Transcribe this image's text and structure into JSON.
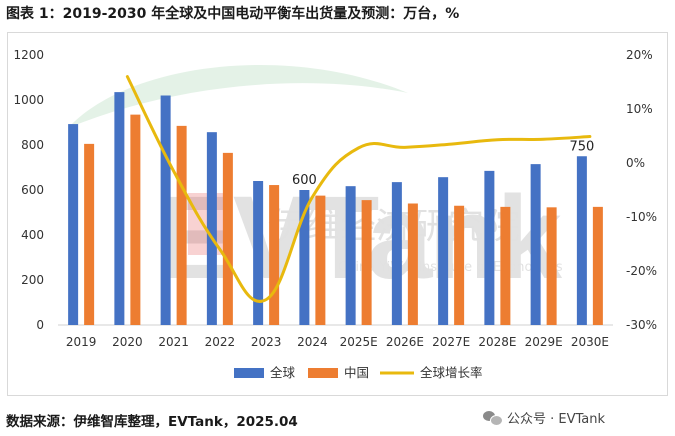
{
  "header": {
    "title": "图表 1：2019-2030 年全球及中国电动平衡车出货量及预测：万台，%"
  },
  "footer": {
    "source": "数据来源：伊维智库整理，EVTank，2025.04",
    "wechat": "公众号 · EVTank"
  },
  "watermark": {
    "logo_text": "EVTank",
    "cn": "伊维经济研究院",
    "en": "China YiWei Institute of Economics",
    "brand_color": "#e03131"
  },
  "colors": {
    "global": "#4472C4",
    "china": "#ED7D31",
    "growth": "#E8B90E"
  },
  "chart_data": {
    "type": "bar",
    "categories": [
      "2019",
      "2020",
      "2021",
      "2022",
      "2023",
      "2024",
      "2025E",
      "2026E",
      "2027E",
      "2028E",
      "2029E",
      "2030E"
    ],
    "series": [
      {
        "name": "全球",
        "type": "bar",
        "axis": "left",
        "values": [
          893,
          1035,
          1020,
          857,
          640,
          600,
          617,
          635,
          657,
          685,
          715,
          750
        ]
      },
      {
        "name": "中国",
        "type": "bar",
        "axis": "left",
        "values": [
          805,
          935,
          885,
          765,
          622,
          575,
          555,
          540,
          530,
          525,
          523,
          525
        ]
      },
      {
        "name": "全球增长率",
        "type": "line",
        "axis": "right",
        "values": [
          null,
          16.0,
          -1.5,
          -16.0,
          -25.3,
          -6.3,
          2.8,
          2.9,
          3.5,
          4.3,
          4.4,
          4.9
        ]
      }
    ],
    "y_left": {
      "min": 0,
      "max": 1200,
      "step": 200,
      "ticks": [
        "0",
        "200",
        "400",
        "600",
        "800",
        "1000",
        "1200"
      ]
    },
    "y_right": {
      "min": -30,
      "max": 20,
      "step": 10,
      "ticks": [
        "-30%",
        "-20%",
        "-10%",
        "0%",
        "10%",
        "20%"
      ]
    },
    "annotations": [
      {
        "category": "2024",
        "series": "全球",
        "text": "600"
      },
      {
        "category": "2030E",
        "series": "全球",
        "text": "750"
      }
    ],
    "legend": {
      "position": "bottom",
      "entries": [
        "全球",
        "中国",
        "全球增长率"
      ]
    },
    "grid": false
  }
}
